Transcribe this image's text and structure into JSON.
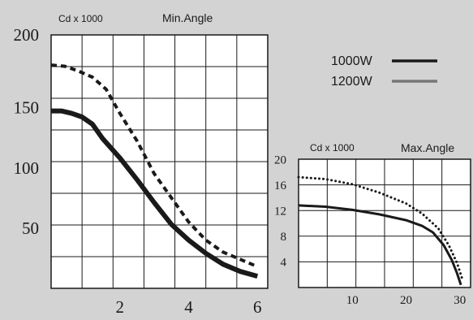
{
  "legend": [
    {
      "label": "1000W",
      "color": "#1a1a1a"
    },
    {
      "label": "1200W",
      "color": "#777777"
    }
  ],
  "chart_data": [
    {
      "type": "line",
      "unit_label": "Cd x 1000",
      "title": "Min.Angle",
      "xlim": [
        0,
        6.3
      ],
      "ylim": [
        0,
        210
      ],
      "xticks": [
        2,
        4,
        6
      ],
      "yticks": [
        50,
        100,
        150,
        200
      ],
      "y_top_label": "200",
      "grid": true,
      "series": [
        {
          "name": "1000W",
          "style": "solid",
          "x": [
            0,
            0.3,
            0.6,
            0.9,
            1.2,
            1.5,
            2.0,
            2.5,
            3.0,
            3.5,
            4.0,
            4.5,
            5.0,
            5.5,
            6.0
          ],
          "y": [
            147,
            147,
            145,
            142,
            136,
            124,
            108,
            90,
            71,
            53,
            40,
            29,
            20,
            14,
            10
          ]
        },
        {
          "name": "",
          "style": "dashed",
          "x": [
            0,
            0.4,
            0.8,
            1.2,
            1.6,
            2.0,
            2.5,
            3.0,
            3.5,
            4.0,
            4.5,
            5.0,
            5.5,
            6.0
          ],
          "y": [
            185,
            184,
            180,
            175,
            165,
            145,
            122,
            95,
            75,
            55,
            40,
            30,
            24,
            18
          ]
        }
      ]
    },
    {
      "type": "line",
      "unit_label": "Cd x 1000",
      "title": "Max.Angle",
      "xlim": [
        0,
        32
      ],
      "ylim": [
        0,
        20
      ],
      "xticks": [
        10,
        20,
        30
      ],
      "yticks": [
        4,
        8,
        12,
        16,
        20
      ],
      "grid": true,
      "series": [
        {
          "name": "1000W",
          "style": "solid",
          "x": [
            0,
            5,
            10,
            15,
            20,
            23,
            25,
            27,
            28.5,
            29.5,
            30.2
          ],
          "y": [
            12.8,
            12.6,
            12.1,
            11.4,
            10.5,
            9.6,
            8.6,
            6.6,
            4.3,
            2.2,
            0.4
          ]
        },
        {
          "name": "",
          "style": "dotted",
          "x": [
            0,
            5,
            10,
            15,
            20,
            23,
            26,
            28,
            29.5,
            30.5
          ],
          "y": [
            17.2,
            16.9,
            16.1,
            14.8,
            13.1,
            11.5,
            9.2,
            6.5,
            3.8,
            1.2
          ]
        }
      ]
    }
  ]
}
